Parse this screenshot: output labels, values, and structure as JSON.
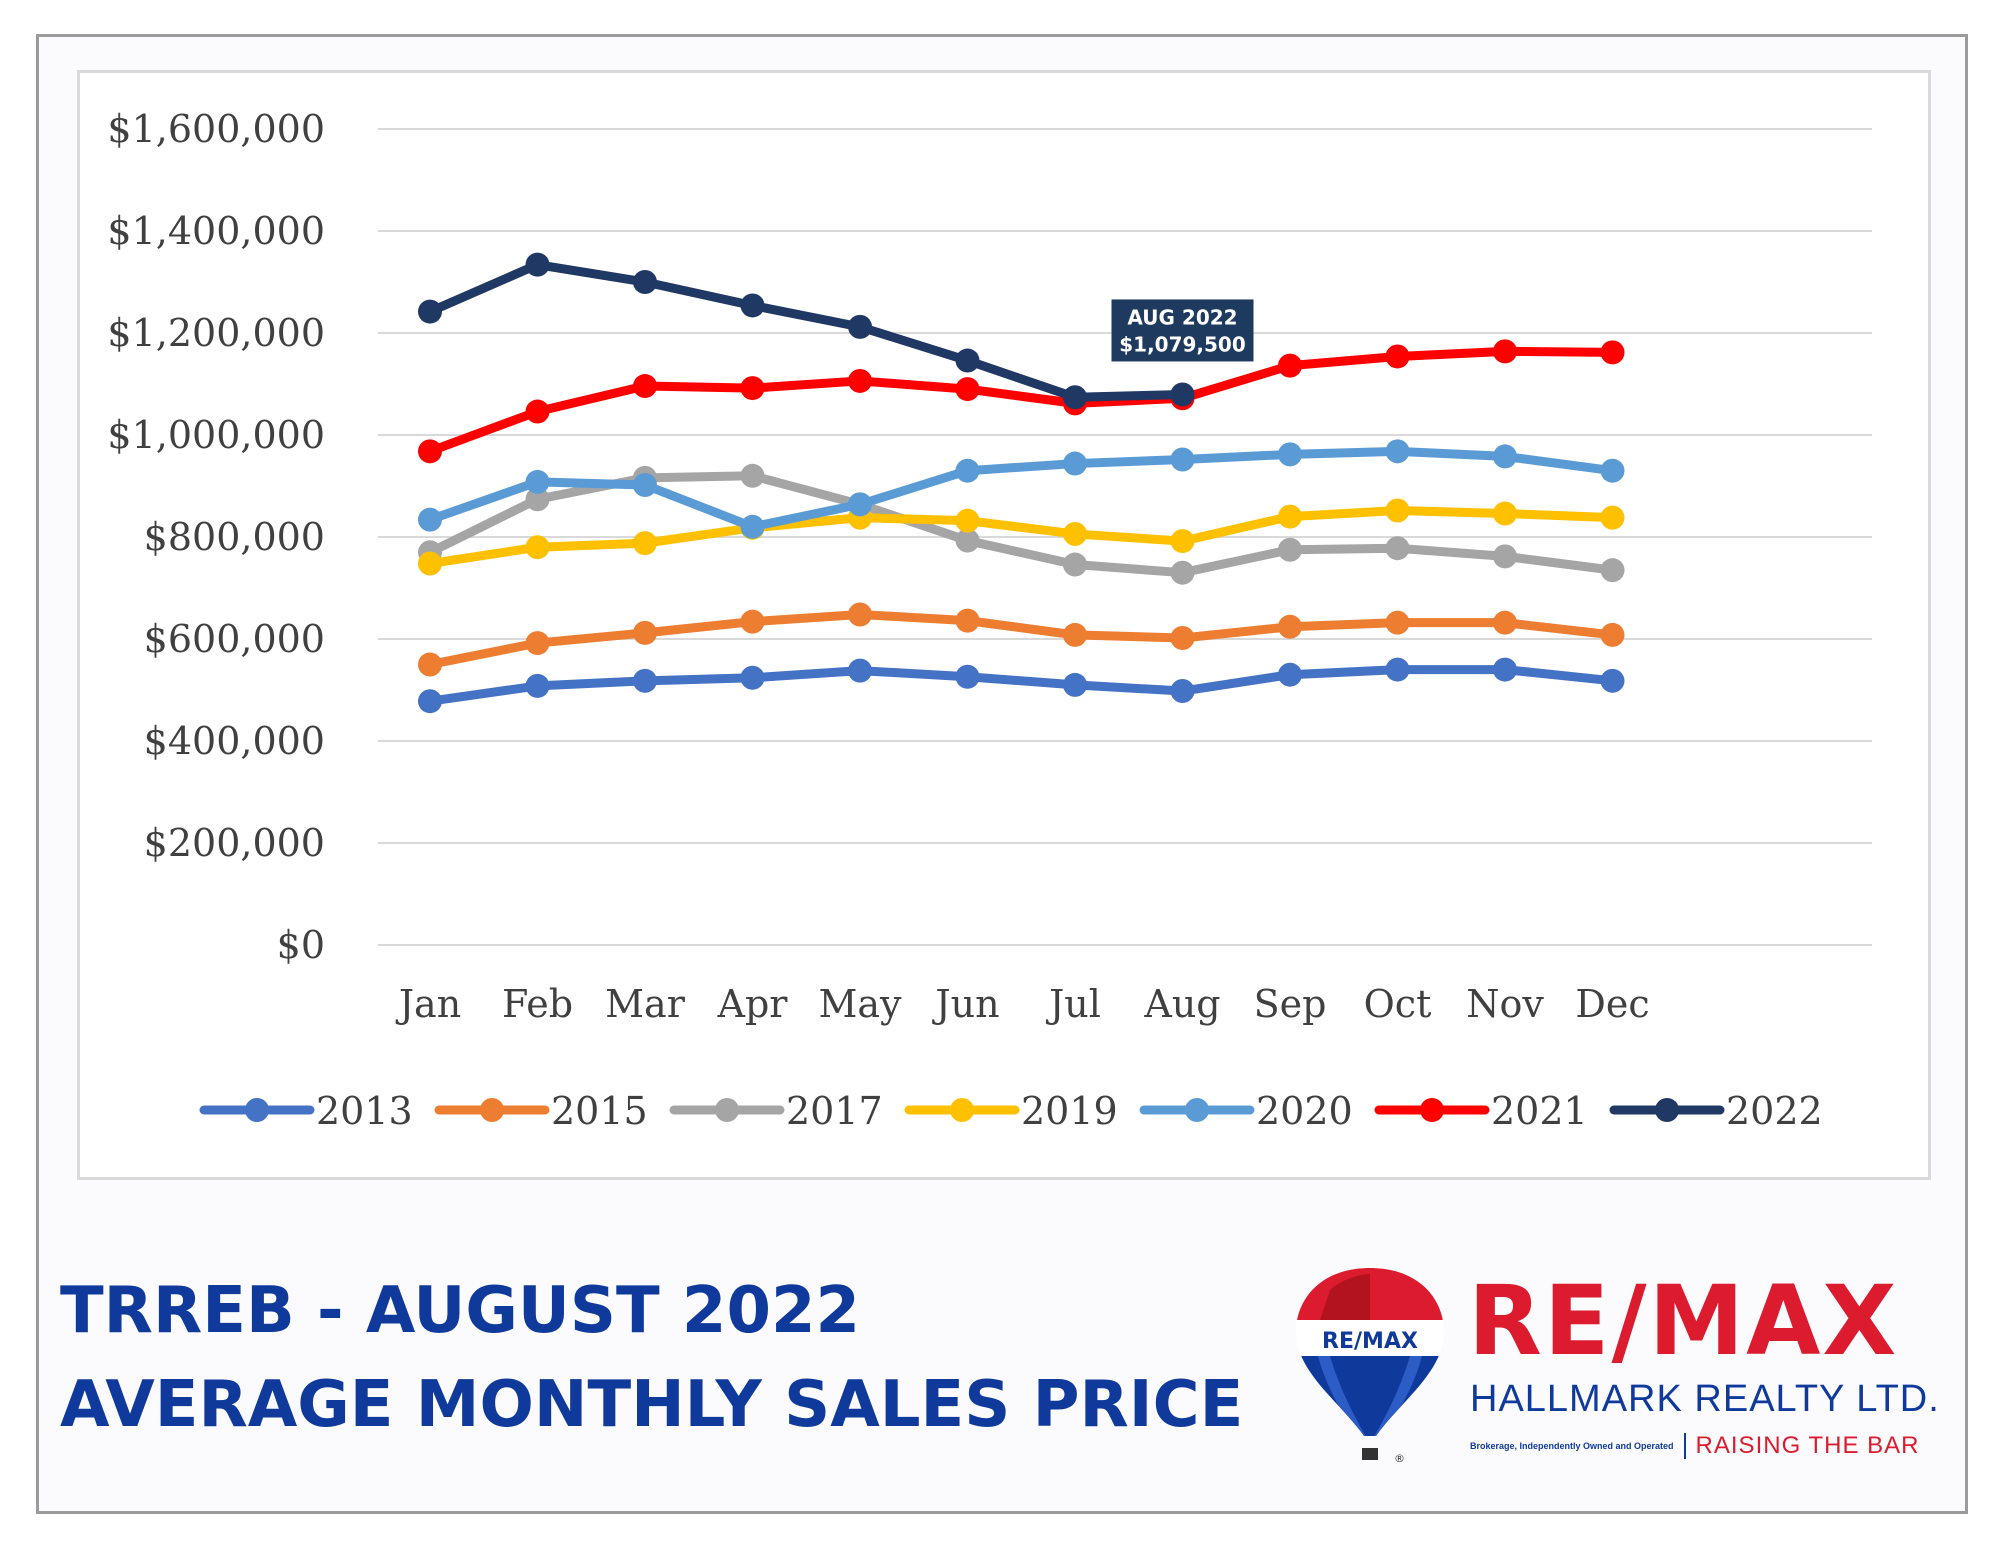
{
  "chart_data": {
    "type": "line",
    "title": "",
    "xlabel": "",
    "ylabel": "",
    "categories": [
      "Jan",
      "Feb",
      "Mar",
      "Apr",
      "May",
      "Jun",
      "Jul",
      "Aug",
      "Sep",
      "Oct",
      "Nov",
      "Dec"
    ],
    "y_ticks": [
      "$0",
      "$200,000",
      "$400,000",
      "$600,000",
      "$800,000",
      "$1,000,000",
      "$1,200,000",
      "$1,400,000",
      "$1,600,000"
    ],
    "ylim": [
      0,
      1600000
    ],
    "grid": true,
    "legend_position": "bottom",
    "series": [
      {
        "name": "2013",
        "color": "#4472c4",
        "values": [
          478000,
          508000,
          518000,
          524000,
          538000,
          526000,
          510000,
          498000,
          530000,
          540000,
          540000,
          518000
        ]
      },
      {
        "name": "2015",
        "color": "#ed7d31",
        "values": [
          550000,
          592000,
          612000,
          634000,
          648000,
          636000,
          608000,
          602000,
          624000,
          632000,
          632000,
          608000
        ]
      },
      {
        "name": "2017",
        "color": "#a5a5a5",
        "values": [
          770000,
          874000,
          916000,
          920000,
          864000,
          793000,
          746000,
          730000,
          775000,
          778000,
          762000,
          735000
        ]
      },
      {
        "name": "2019",
        "color": "#ffc000",
        "values": [
          748000,
          780000,
          788000,
          818000,
          838000,
          832000,
          806000,
          792000,
          840000,
          852000,
          846000,
          838000
        ]
      },
      {
        "name": "2020",
        "color": "#5b9bd5",
        "values": [
          834000,
          908000,
          902000,
          820000,
          864000,
          930000,
          944000,
          952000,
          962000,
          968000,
          958000,
          930000
        ]
      },
      {
        "name": "2021",
        "color": "#ff0000",
        "values": [
          968000,
          1046000,
          1096000,
          1092000,
          1106000,
          1090000,
          1062000,
          1072000,
          1136000,
          1154000,
          1164000,
          1162000
        ]
      },
      {
        "name": "2022",
        "color": "#203864",
        "values": [
          1242000,
          1334000,
          1300000,
          1254000,
          1212000,
          1146000,
          1074000,
          1079500,
          null,
          null,
          null,
          null
        ]
      }
    ],
    "annotation": {
      "series": "2022",
      "category": "Aug",
      "line1": "AUG 2022",
      "line2": "$1,079,500",
      "bg": "#1f3a5f"
    }
  },
  "title": {
    "line1": "TRREB - AUGUST 2022",
    "line2": "AVERAGE MONTHLY SALES PRICE",
    "color": "#0f3a9c"
  },
  "brand": {
    "balloon_text": "RE/MAX",
    "name": "RE/MAX",
    "subname": "HALLMARK REALTY LTD.",
    "small_print": "Brokerage, Independently Owned and Operated",
    "tagline": "RAISING THE BAR",
    "registered": "®",
    "red": "#dc1c2e",
    "blue": "#0f3a9c"
  }
}
